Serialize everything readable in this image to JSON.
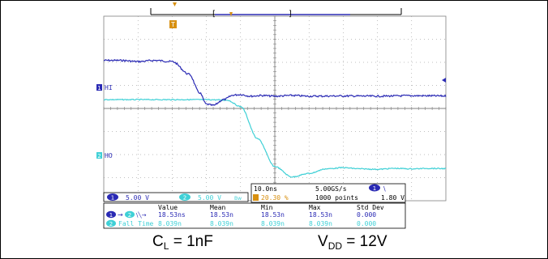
{
  "chart_data": {
    "type": "line",
    "series": [
      {
        "name": "HI",
        "color": "#2a2ab4",
        "x_div": [
          0,
          0.5,
          1,
          1.5,
          2,
          2.5,
          2.8,
          3,
          3.2,
          3.5,
          3.8,
          4,
          4.3,
          4.6,
          5,
          5.5,
          6,
          7,
          8,
          9,
          10
        ],
        "y_div": [
          1.6,
          1.6,
          1.55,
          1.6,
          1.55,
          1.0,
          0.2,
          -0.3,
          -0.35,
          -0.1,
          0.1,
          0.12,
          0.05,
          0.08,
          0.05,
          0.08,
          0.05,
          0.06,
          0.05,
          0.07,
          0.06
        ]
      },
      {
        "name": "HO",
        "color": "#3fd0d6",
        "x_div": [
          0,
          1,
          2,
          3,
          3.6,
          4,
          4.5,
          5,
          5.5,
          6,
          6.5,
          7,
          7.5,
          8,
          8.5,
          9,
          9.5,
          10
        ],
        "y_div": [
          2.9,
          2.9,
          2.9,
          2.9,
          2.88,
          2.6,
          1.2,
          0,
          -0.45,
          -0.3,
          -0.1,
          -0.05,
          -0.1,
          -0.12,
          -0.08,
          -0.1,
          -0.08,
          -0.09
        ]
      }
    ],
    "hi_ref_div": 0,
    "ho_ref_div": -2.1
  },
  "scope": {
    "ch1_label": "HI",
    "ch2_label": "HO",
    "ch1_scale": "5.00 V",
    "ch2_scale": "5.00 V",
    "bw_symbol": "Bw",
    "timebase": "10.0ns",
    "sample_rate": "5.00GS/s",
    "trigger_pos": "20.30 %",
    "points": "1000 points",
    "trigger_level": "1.80 V",
    "trigger_ch": "1",
    "trigger_slope": "\\",
    "meas_headers": [
      "Value",
      "Mean",
      "Min",
      "Max",
      "Std Dev"
    ],
    "meas_rows": [
      {
        "label": "→",
        "ch_a": "1",
        "ch_b": "2",
        "values": [
          "18.53ns",
          "18.53n",
          "18.53n",
          "18.53n",
          "0.000"
        ]
      },
      {
        "label": "Fall Time",
        "ch": "2",
        "values": [
          "8.039n",
          "8.039n",
          "8.039n",
          "8.039n",
          "0.000"
        ]
      }
    ]
  },
  "captions": {
    "cl_main": "C",
    "cl_sub": "L",
    "cl_rest": " = 1nF",
    "vdd_main": "V",
    "vdd_sub": "DD",
    "vdd_rest": " = 12V"
  },
  "colors": {
    "ch1": "#2a2ab4",
    "ch2": "#3fd0d6",
    "trigger": "#d89010",
    "grid": "#808080"
  }
}
